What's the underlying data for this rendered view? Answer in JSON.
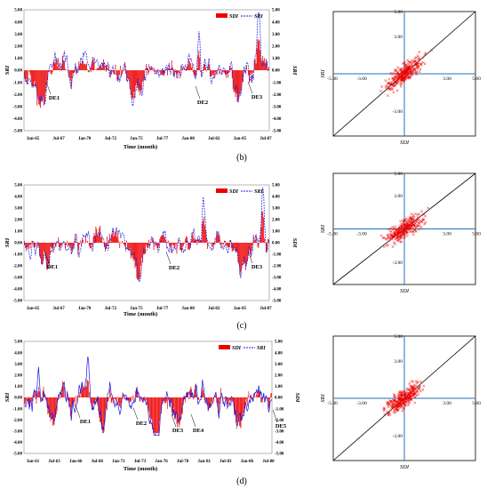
{
  "colors": {
    "sdi": "#ee0000",
    "sri": "#1a1ae6",
    "scatter": "#ee0000",
    "scatter_axes": "#1f6fbf"
  },
  "panels": [
    {
      "label": "(b)",
      "y_title": "SRI",
      "y2_title": "SRI",
      "x_title": "Time (month)",
      "legend": {
        "sdi": "SDI",
        "sri": "SRI"
      },
      "y_ticks": [
        "5.00",
        "4.00",
        "3.00",
        "2.00",
        "1.00",
        "0.00",
        "-1.00",
        "-2.00",
        "-3.00",
        "-4.00",
        "-5.00"
      ],
      "y2_ticks": [
        "5.00",
        "4.00",
        "3.00",
        "2.00",
        "1.00",
        "0.00",
        "-1.00",
        "-2.00",
        "-3.00",
        "-4.00",
        "-5.00"
      ],
      "x_ticks": [
        "Jan-65",
        "Jul-67",
        "Jan-70",
        "Jul-72",
        "Jan-75",
        "Jul-77",
        "Jan-80",
        "Jul-82",
        "Jan-85",
        "Jul-87"
      ],
      "annotations": [
        "DE1",
        "DE2",
        "DE3"
      ],
      "scatter": {
        "x_label": "SDI",
        "y_label": "SRI",
        "ticks": [
          "5.00",
          "3.00",
          "-3.00",
          "-5.00",
          "-3.00",
          "3.00",
          "5.00"
        ]
      }
    },
    {
      "label": "(c)",
      "y_title": "SRI",
      "y2_title": "SDI",
      "x_title": "Time (month)",
      "legend": {
        "sdi": "SDI",
        "sri": "SRI"
      },
      "y_ticks": [
        "5.00",
        "4.00",
        "3.00",
        "2.00",
        "1.00",
        "0.00",
        "-1.00",
        "-2.00",
        "-3.00",
        "-4.00",
        "-5.00"
      ],
      "y2_ticks": [
        "5.00",
        "4.00",
        "3.00",
        "2.00",
        "1.00",
        "0.00",
        "-1.00",
        "-2.00",
        "-3.00",
        "-4.00",
        "-5.00"
      ],
      "x_ticks": [
        "Jan-65",
        "Jul-67",
        "Jan-70",
        "Jul-72",
        "Jan-75",
        "Jul-77",
        "Jan-80",
        "Jul-82",
        "Jan-85",
        "Jul-87"
      ],
      "annotations": [
        "DE1",
        "DE2",
        "DE3"
      ],
      "scatter": {
        "x_label": "SDI",
        "y_label": "SRI",
        "ticks": [
          "5.00",
          "3.00",
          "-3.00",
          "-5.00",
          "-3.00",
          "3.00",
          "5.00"
        ]
      }
    },
    {
      "label": "(d)",
      "y_title": "SRI",
      "y2_title": "SDI",
      "x_title": "Time (month)",
      "legend": {
        "sdi": "SDI",
        "sri": "SRI"
      },
      "y_ticks": [
        "5.00",
        "4.00",
        "3.00",
        "2.00",
        "1.00",
        "0.00",
        "-1.00",
        "-2.00",
        "-3.00",
        "-4.00",
        "-5.00"
      ],
      "y2_ticks": [
        "5.00",
        "4.00",
        "3.00",
        "2.00",
        "1.00",
        "0.00",
        "-1.00",
        "-2.00",
        "-3.00",
        "-4.00",
        "-5.00"
      ],
      "x_ticks": [
        "Jan-61",
        "Jul-63",
        "Jan-66",
        "Jul-68",
        "Jan-71",
        "Jul-73",
        "Jan-76",
        "Jul-78",
        "Jan-81",
        "Jul-83",
        "Jan-86",
        "Jul-88"
      ],
      "annotations": [
        "DE1",
        "DE2",
        "DE3",
        "DE4",
        "DE5"
      ],
      "scatter": {
        "x_label": "SDI",
        "y_label": "SRI",
        "ticks": [
          "5.00",
          "3.00",
          "-3.00",
          "-5.00",
          "-3.00",
          "3.00",
          "5.00"
        ]
      }
    }
  ],
  "chart_data": [
    {
      "type": "bar",
      "x_type": "monthly",
      "x_range": [
        "Jan-65",
        "Dec-88"
      ],
      "ylim": [
        -5,
        5
      ],
      "y2lim": [
        -5,
        5
      ],
      "series": [
        {
          "name": "SDI",
          "kind": "bar",
          "values_summary": "monthly bars between about -2.5 and 4.0"
        },
        {
          "name": "SRI",
          "kind": "dashed-line",
          "values_summary": "monthly line between about -3.0 and 4.5"
        }
      ],
      "drought_events": [
        "DE1",
        "DE2",
        "DE3"
      ]
    },
    {
      "type": "scatter",
      "xlabel": "SDI",
      "ylabel": "SRI",
      "xlim": [
        -5,
        5
      ],
      "ylim": [
        -5,
        5
      ],
      "reference_line": "1:1",
      "point_cloud": "positively correlated cluster centred near (0, 0), spread roughly -3 to 3"
    },
    {
      "type": "bar",
      "x_type": "monthly",
      "x_range": [
        "Jan-65",
        "Dec-88"
      ],
      "ylim": [
        -5,
        5
      ],
      "y2lim": [
        -5,
        5
      ],
      "series": [
        {
          "name": "SDI",
          "kind": "bar",
          "values_summary": "monthly bars between about -2.8 and 3.0"
        },
        {
          "name": "SRI",
          "kind": "dashed-line",
          "values_summary": "monthly line between about -2.5 and 4.5"
        }
      ],
      "drought_events": [
        "DE1",
        "DE2",
        "DE3"
      ]
    },
    {
      "type": "scatter",
      "xlabel": "SDI",
      "ylabel": "SRI",
      "xlim": [
        -5,
        5
      ],
      "ylim": [
        -5,
        5
      ],
      "reference_line": "1:1",
      "point_cloud": "positively correlated cluster centred near (0, 0), spread roughly -3 to 4.5"
    },
    {
      "type": "bar",
      "x_type": "monthly",
      "x_range": [
        "Jan-61",
        "Dec-89"
      ],
      "ylim": [
        -5,
        5
      ],
      "y2lim": [
        -5,
        5
      ],
      "series": [
        {
          "name": "SDI",
          "kind": "bar",
          "values_summary": "monthly bars between about -2.5 and 3.0"
        },
        {
          "name": "SRI",
          "kind": "line",
          "values_summary": "monthly line between about -3.0 and 3.5"
        }
      ],
      "drought_events": [
        "DE1",
        "DE2",
        "DE3",
        "DE4",
        "DE5"
      ]
    },
    {
      "type": "scatter",
      "xlabel": "SDI",
      "ylabel": "SRI",
      "xlim": [
        -5,
        5
      ],
      "ylim": [
        -5,
        5
      ],
      "reference_line": "1:1",
      "point_cloud": "positively correlated cluster centred near (0, 0), spread roughly -3 to 3.5"
    }
  ]
}
